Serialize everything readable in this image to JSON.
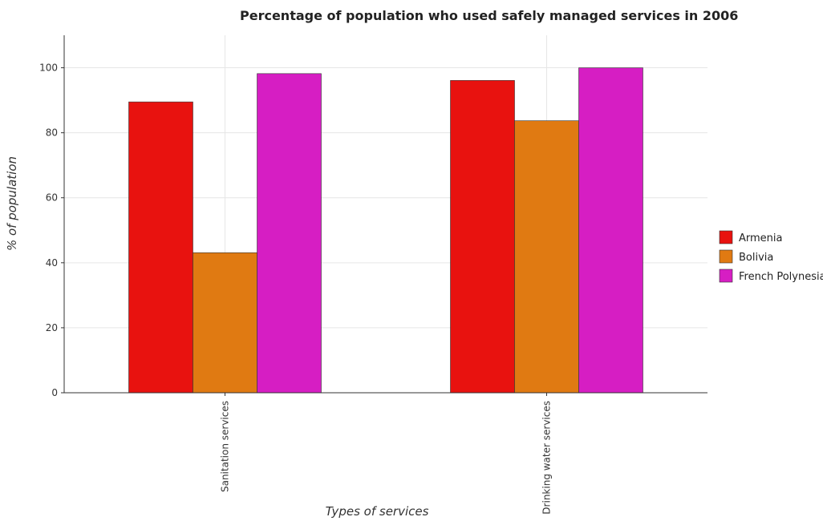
{
  "chart_data": {
    "type": "bar",
    "title": "Percentage of population who used safely managed services in 2006",
    "xlabel": "Types of services",
    "ylabel": "% of population",
    "categories": [
      "Sanitation services",
      "Drinking water services"
    ],
    "series": [
      {
        "name": "Armenia",
        "color": "#e8120f",
        "values": [
          89.5,
          96.1
        ]
      },
      {
        "name": "Bolivia",
        "color": "#e07a12",
        "values": [
          43.1,
          83.7
        ]
      },
      {
        "name": "French Polynesia",
        "color": "#d61ec3",
        "values": [
          98.2,
          100
        ]
      }
    ],
    "ylim": [
      0,
      110
    ],
    "yticks": [
      0,
      20,
      40,
      60,
      80,
      100
    ],
    "grid": true,
    "legend_position": "right"
  }
}
